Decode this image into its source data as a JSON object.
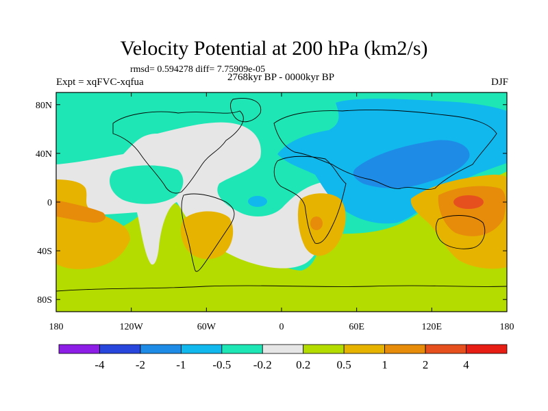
{
  "chart_data": {
    "type": "heatmap",
    "title": "Velocity Potential at 200 hPa (km2/s)",
    "stats": "rmsd= 0.594278 diff= 7.75909e-05",
    "subtitle": "2768kyr BP - 0000kyr BP",
    "experiment": "Expt = xqFVC-xqfua",
    "season": "DJF",
    "x_ticks": [
      {
        "value": -180,
        "label": "180"
      },
      {
        "value": -120,
        "label": "120W"
      },
      {
        "value": -60,
        "label": "60W"
      },
      {
        "value": 0,
        "label": "0"
      },
      {
        "value": 60,
        "label": "60E"
      },
      {
        "value": 120,
        "label": "120E"
      },
      {
        "value": 180,
        "label": "180"
      }
    ],
    "y_ticks": [
      {
        "value": 80,
        "label": "80N"
      },
      {
        "value": 40,
        "label": "40N"
      },
      {
        "value": 0,
        "label": "0"
      },
      {
        "value": -40,
        "label": "40S"
      },
      {
        "value": -80,
        "label": "80S"
      }
    ],
    "xlim": [
      -180,
      180
    ],
    "ylim": [
      -90,
      90
    ],
    "colorbar": {
      "levels": [
        "-4",
        "-2",
        "-1",
        "-0.5",
        "-0.2",
        "0.2",
        "0.5",
        "1",
        "2",
        "4"
      ],
      "colors": [
        "#8c1ee6",
        "#2846dc",
        "#1e8ce6",
        "#10b8ee",
        "#1ee6b4",
        "#e6e6e6",
        "#b4dc00",
        "#e6b400",
        "#e68c0a",
        "#e6501e",
        "#e61e14"
      ]
    },
    "regions": [
      {
        "name": "northern-ring-teal",
        "level": "-0.5 to -0.2",
        "color": "#1ee6b4"
      },
      {
        "name": "atlantic-white",
        "level": "-0.2 to 0.2",
        "color": "#e6e6e6"
      },
      {
        "name": "asia-blue",
        "level": "-1 to -0.5",
        "color": "#10b8ee"
      },
      {
        "name": "asia-core",
        "level": "-2 to -1",
        "color": "#1e8ce6"
      },
      {
        "name": "south-green",
        "level": "0.2 to 0.5",
        "color": "#b4dc00"
      },
      {
        "name": "maritime-orange",
        "level": "1 to 2",
        "color": "#e68c0a"
      },
      {
        "name": "maritime-red",
        "level": "2 to 4",
        "color": "#e6501e"
      }
    ]
  }
}
